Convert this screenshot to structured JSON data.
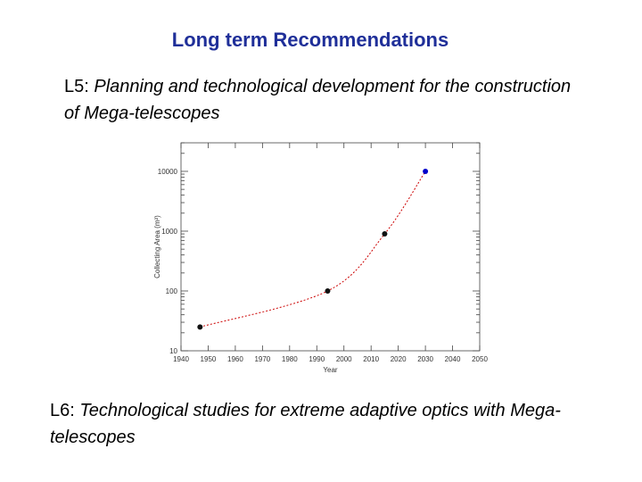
{
  "title": "Long term Recommendations",
  "items": [
    {
      "label": "L5:",
      "text": "Planning and technological development for the construction of Mega-telescopes"
    },
    {
      "label": "L6:",
      "text": "Technological studies for extreme adaptive optics with Mega-telescopes"
    }
  ],
  "chart_data": {
    "type": "scatter",
    "x_label": "Year",
    "y_label": "Collecting Area (m²)",
    "x": [
      1947,
      1994,
      2015,
      2030
    ],
    "values": [
      25,
      100,
      900,
      10000
    ],
    "colors": [
      "#111111",
      "#111111",
      "#111111",
      "#0000cc"
    ],
    "curve_color": "#cc0000",
    "xlim": [
      1940,
      2050
    ],
    "xticks": [
      1940,
      1950,
      1960,
      1970,
      1980,
      1990,
      2000,
      2010,
      2020,
      2030,
      2040,
      2050
    ],
    "ylim": [
      10,
      30000
    ],
    "yticks": [
      10,
      100,
      1000,
      10000
    ],
    "log_y": true
  }
}
